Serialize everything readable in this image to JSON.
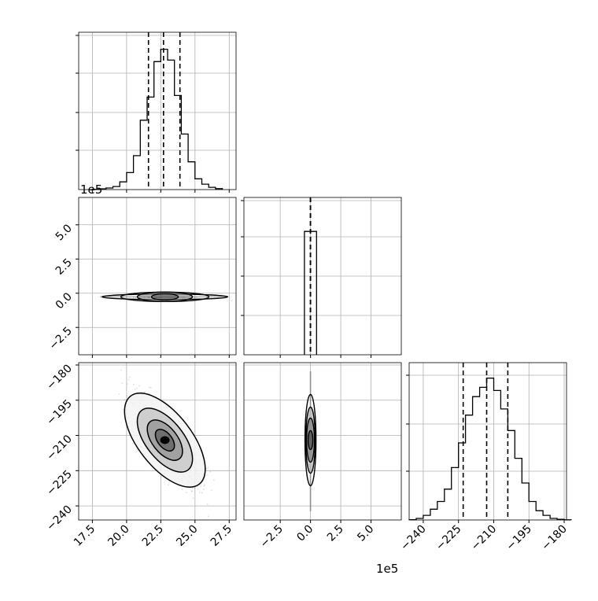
{
  "chart_data": {
    "type": "corner",
    "offset_text": {
      "x_middle": "1e5",
      "y_middle": "1e5"
    },
    "panels": [
      {
        "id": "hist-x",
        "type": "histogram",
        "xlim": [
          16.5,
          28.0
        ],
        "quantiles": [
          21.6,
          22.7,
          23.9
        ],
        "bins": [
          [
            17.5,
            0.002
          ],
          [
            18.0,
            0.005
          ],
          [
            18.5,
            0.01
          ],
          [
            19.0,
            0.02
          ],
          [
            19.5,
            0.05
          ],
          [
            20.0,
            0.11
          ],
          [
            20.5,
            0.22
          ],
          [
            21.0,
            0.45
          ],
          [
            21.5,
            0.6
          ],
          [
            22.0,
            0.83
          ],
          [
            22.5,
            0.91
          ],
          [
            23.0,
            0.84
          ],
          [
            23.5,
            0.61
          ],
          [
            24.0,
            0.36
          ],
          [
            24.5,
            0.18
          ],
          [
            25.0,
            0.07
          ],
          [
            25.5,
            0.035
          ],
          [
            26.0,
            0.015
          ],
          [
            26.5,
            0.006
          ]
        ],
        "grid": true
      },
      {
        "id": "hist-mid",
        "type": "histogram",
        "xlim": [
          -5.5,
          7.5
        ],
        "quantiles": [
          0.0,
          0.0,
          0.0
        ],
        "bins": [
          [
            -0.5,
            0.8
          ],
          [
            0.0,
            0.8
          ]
        ],
        "grid": true
      },
      {
        "id": "hist-y",
        "type": "histogram",
        "xlim": [
          -246,
          -179
        ],
        "quantiles": [
          -223,
          -213,
          -204
        ],
        "bins": [
          [
            -246,
            0.002
          ],
          [
            -243,
            0.01
          ],
          [
            -240,
            0.03
          ],
          [
            -237,
            0.07
          ],
          [
            -234,
            0.12
          ],
          [
            -231,
            0.2
          ],
          [
            -228,
            0.34
          ],
          [
            -225,
            0.5
          ],
          [
            -222,
            0.68
          ],
          [
            -219,
            0.8
          ],
          [
            -216,
            0.86
          ],
          [
            -213,
            0.92
          ],
          [
            -210,
            0.84
          ],
          [
            -207,
            0.72
          ],
          [
            -204,
            0.58
          ],
          [
            -201,
            0.4
          ],
          [
            -198,
            0.24
          ],
          [
            -195,
            0.12
          ],
          [
            -192,
            0.06
          ],
          [
            -189,
            0.03
          ],
          [
            -186,
            0.01
          ],
          [
            -183,
            0.004
          ],
          [
            -180,
            0.001
          ]
        ],
        "grid": true
      },
      {
        "id": "scatter-mid-x",
        "type": "contour",
        "xlim": [
          16.5,
          28.0
        ],
        "ylim": [
          -4.5,
          7.0
        ],
        "center": [
          22.8,
          -0.15
        ],
        "grid": true
      },
      {
        "id": "scatter-y-x",
        "type": "contour",
        "xlim": [
          16.5,
          28.0
        ],
        "ylim": [
          -246,
          -179
        ],
        "center": [
          22.8,
          -212
        ],
        "grid": true
      },
      {
        "id": "scatter-y-mid",
        "type": "contour",
        "xlim": [
          -5.5,
          7.5
        ],
        "ylim": [
          -246,
          -179
        ],
        "center": [
          0.0,
          -212
        ],
        "grid": true
      }
    ],
    "ticks": {
      "x_left": [
        "17.5",
        "20.0",
        "22.5",
        "25.0",
        "27.5"
      ],
      "x_mid": [
        "−2.5",
        "0.0",
        "2.5",
        "5.0"
      ],
      "x_right": [
        "−240",
        "−225",
        "−210",
        "−195",
        "−180"
      ],
      "y_middle": [
        "5.0",
        "2.5",
        "0.0",
        "−2.5"
      ],
      "y_bottom": [
        "−180",
        "−195",
        "−210",
        "−225",
        "−240"
      ]
    },
    "colors": {
      "line": "#000000",
      "grid": "#b0b0b0",
      "density": "#444444"
    }
  }
}
